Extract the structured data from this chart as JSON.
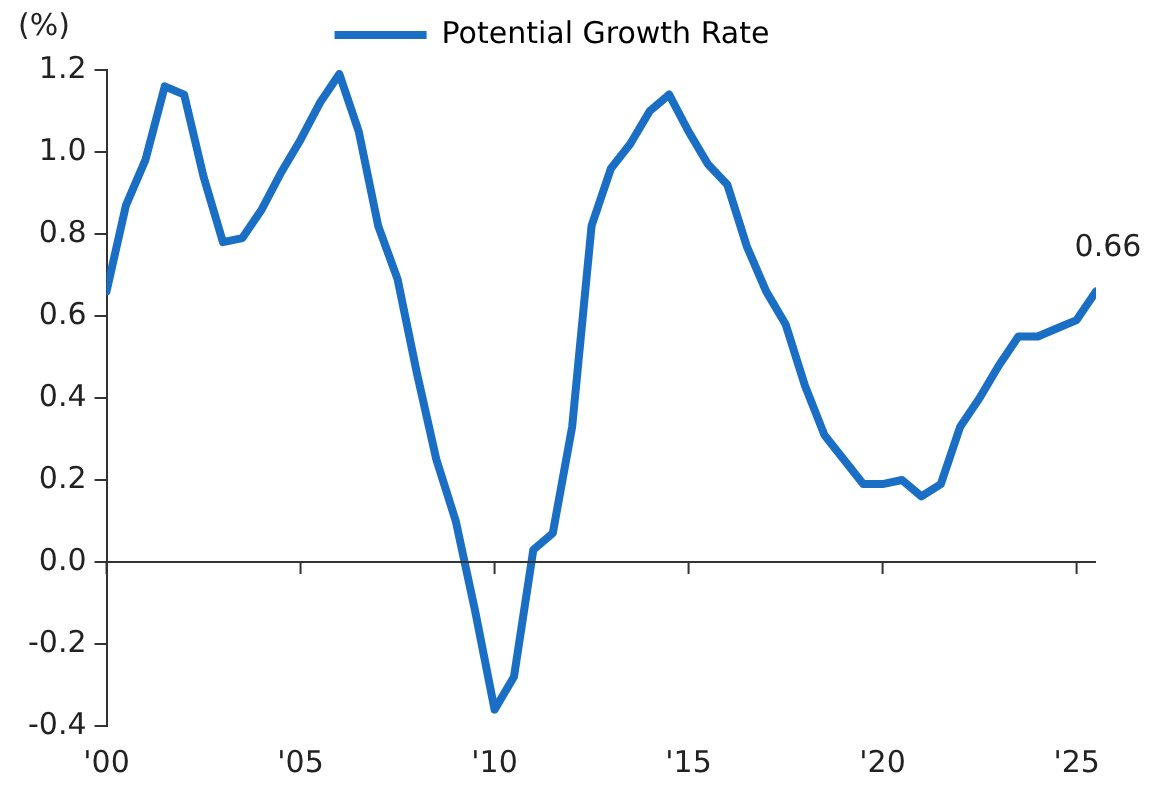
{
  "chart_data": {
    "type": "line",
    "ylabel": "(%)",
    "x": [
      2000,
      2000.5,
      2001,
      2001.5,
      2002,
      2002.5,
      2003,
      2003.5,
      2004,
      2004.5,
      2005,
      2005.5,
      2006,
      2006.5,
      2007,
      2007.5,
      2008,
      2008.5,
      2009,
      2009.5,
      2010,
      2010.5,
      2011,
      2011.5,
      2012,
      2012.5,
      2013,
      2013.5,
      2014,
      2014.5,
      2015,
      2015.5,
      2016,
      2016.5,
      2017,
      2017.5,
      2018,
      2018.5,
      2019,
      2019.5,
      2020,
      2020.5,
      2021,
      2021.5,
      2022,
      2022.5,
      2023,
      2023.5,
      2024,
      2024.5,
      2025,
      2025.5
    ],
    "series": [
      {
        "name": "Potential Growth Rate",
        "color": "#1a6fc4",
        "values": [
          0.66,
          0.87,
          0.98,
          1.16,
          1.14,
          0.94,
          0.78,
          0.79,
          0.86,
          0.95,
          1.03,
          1.12,
          1.19,
          1.05,
          0.82,
          0.69,
          0.46,
          0.25,
          0.1,
          -0.12,
          -0.36,
          -0.28,
          0.03,
          0.07,
          0.33,
          0.82,
          0.96,
          1.02,
          1.1,
          1.14,
          1.05,
          0.97,
          0.92,
          0.77,
          0.66,
          0.58,
          0.43,
          0.31,
          0.25,
          0.19,
          0.19,
          0.2,
          0.16,
          0.19,
          0.33,
          0.4,
          0.48,
          0.55,
          0.55,
          0.57,
          0.59,
          0.66
        ],
        "value_labels": [
          null,
          null,
          null,
          null,
          null,
          null,
          null,
          null,
          null,
          null,
          null,
          null,
          null,
          null,
          null,
          null,
          null,
          null,
          null,
          null,
          null,
          null,
          null,
          null,
          null,
          null,
          null,
          null,
          null,
          null,
          null,
          null,
          null,
          null,
          null,
          null,
          null,
          null,
          null,
          null,
          null,
          null,
          null,
          null,
          null,
          null,
          null,
          null,
          null,
          null,
          null,
          "0.66"
        ]
      }
    ],
    "xlim": [
      2000,
      2025.5
    ],
    "xticks": [
      {
        "value": 2000,
        "label": "'00"
      },
      {
        "value": 2005,
        "label": "'05"
      },
      {
        "value": 2010,
        "label": "'10"
      },
      {
        "value": 2015,
        "label": "'15"
      },
      {
        "value": 2020,
        "label": "'20"
      },
      {
        "value": 2025,
        "label": "'25"
      }
    ],
    "ylim": [
      -0.4,
      1.2
    ],
    "yticks": [
      {
        "value": -0.4,
        "label": "-0.4"
      },
      {
        "value": -0.2,
        "label": "-0.2"
      },
      {
        "value": 0,
        "label": "0.0"
      },
      {
        "value": 0.2,
        "label": "0.2"
      },
      {
        "value": 0.4,
        "label": "0.4"
      },
      {
        "value": 0.6,
        "label": "0.6"
      },
      {
        "value": 0.8,
        "label": "0.8"
      },
      {
        "value": 1,
        "label": "1.0"
      },
      {
        "value": 1.2,
        "label": "1.2"
      }
    ],
    "legend": "top",
    "marker": "none",
    "line_style": "solid"
  }
}
